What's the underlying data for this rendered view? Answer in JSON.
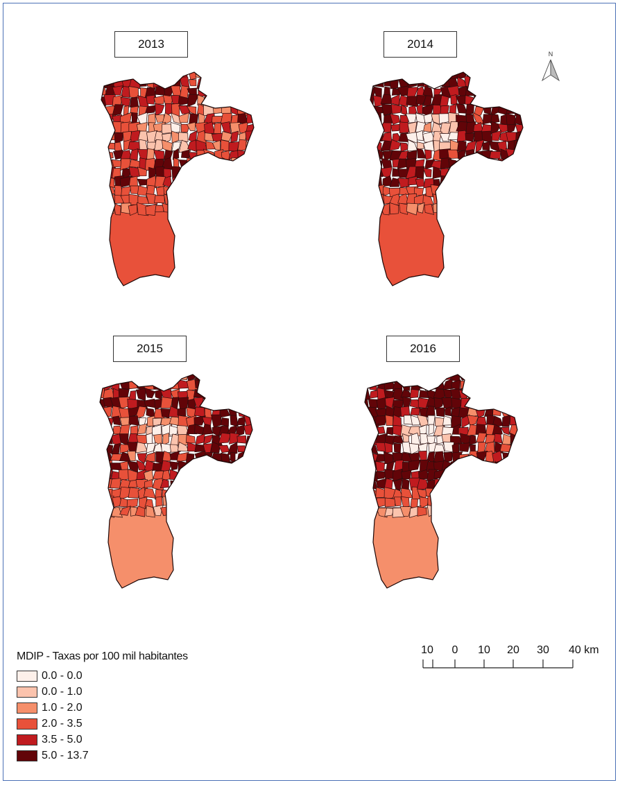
{
  "maps": [
    {
      "year": "2013",
      "colors": {
        "n": 4,
        "c": 1,
        "e": 3,
        "s": 3
      }
    },
    {
      "year": "2014",
      "colors": {
        "n": 5,
        "c": 0,
        "e": 5,
        "s": 3
      }
    },
    {
      "year": "2015",
      "colors": {
        "n": 4,
        "c": 1,
        "e": 5,
        "s": 2
      }
    },
    {
      "year": "2016",
      "colors": {
        "n": 5,
        "c": 0,
        "e": 4,
        "s": 2
      }
    }
  ],
  "legend": {
    "title": "MDIP - Taxas por 100 mil habitantes",
    "classes": [
      {
        "label": "0.0 - 0.0",
        "color": "#fdf0ea"
      },
      {
        "label": "0.0 - 1.0",
        "color": "#fbc3ad"
      },
      {
        "label": "1.0 - 2.0",
        "color": "#f58f6b"
      },
      {
        "label": "2.0 - 3.5",
        "color": "#e8513a"
      },
      {
        "label": "3.5 - 5.0",
        "color": "#c01b1f"
      },
      {
        "label": "5.0 - 13.7",
        "color": "#620408"
      }
    ]
  },
  "scale": {
    "labels": [
      "10",
      "0",
      "10",
      "20",
      "30",
      "40 km"
    ]
  },
  "north_arrow": {
    "label": "N",
    "icon": "north-arrow-icon"
  }
}
